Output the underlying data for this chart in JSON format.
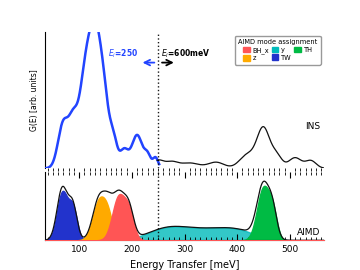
{
  "xlabel": "Energy Transfer [meV]",
  "ylabel": "G(E) [arb. units]",
  "xlim": [
    35,
    565
  ],
  "dashed_line_x": 250,
  "ins_label": "INS",
  "aimd_label": "AIMD",
  "legend_title": "AIMD mode assignment",
  "colors": {
    "ins_low_line": "#2244ff",
    "ins_high_line": "#111111",
    "aimd_total": "#111111",
    "BH_x": "#ff5555",
    "z": "#ffaa00",
    "y": "#00bbbb",
    "TW": "#2233cc",
    "TH": "#00bb44"
  },
  "background": "#ffffff"
}
